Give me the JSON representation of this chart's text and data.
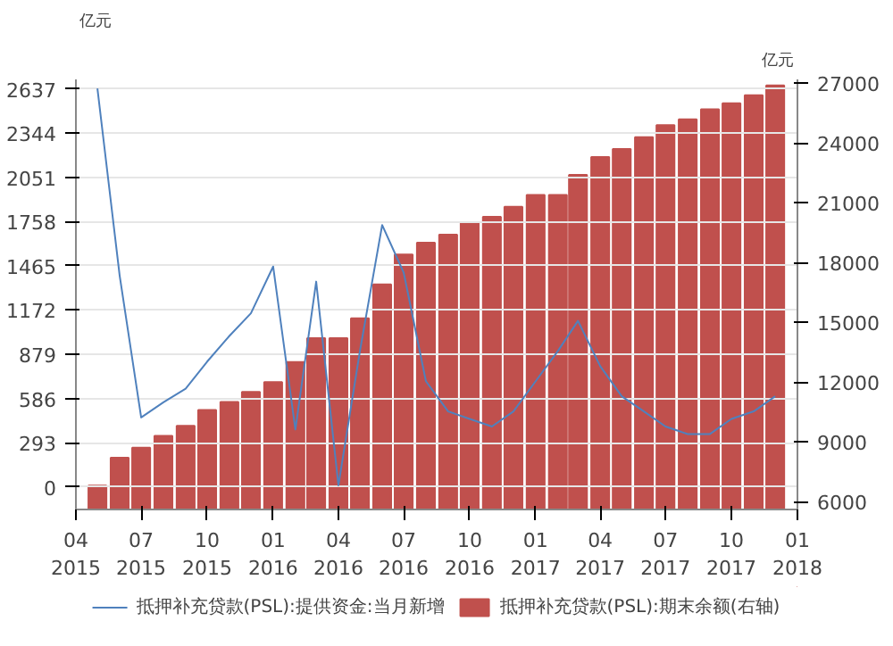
{
  "chart_data": {
    "type": "bar",
    "ylabel": "亿元",
    "y2label": "亿元",
    "x": [
      "2015-05",
      "2015-06",
      "2015-07",
      "2015-08",
      "2015-09",
      "2015-10",
      "2015-11",
      "2015-12",
      "2016-01",
      "2016-02",
      "2016-03",
      "2016-04",
      "2016-05",
      "2016-06",
      "2016-07",
      "2016-08",
      "2016-09",
      "2016-10",
      "2016-11",
      "2016-12",
      "2017-01",
      "2017-02",
      "2017-03",
      "2017-04",
      "2017-05",
      "2017-06",
      "2017-07",
      "2017-08",
      "2017-09",
      "2017-10",
      "2017-11",
      "2017-12"
    ],
    "series": [
      {
        "name": "抵押补充贷款(PSL):提供资金:当月新增",
        "type": "line",
        "color": "#4f81bd",
        "values": [
          2640,
          1400,
          460,
          560,
          650,
          830,
          1000,
          1150,
          1460,
          380,
          1360,
          10,
          900,
          1735,
          1420,
          700,
          500,
          450,
          400,
          500,
          700,
          900,
          1100,
          800,
          600,
          500,
          400,
          350,
          350,
          450,
          500,
          600
        ]
      },
      {
        "name": "抵押补充贷款(PSL):期末余额(右轴)",
        "axis": "y2",
        "color": "#c0504d",
        "values": [
          6800,
          8200,
          8700,
          9300,
          9800,
          10600,
          11000,
          11500,
          12000,
          13000,
          14200,
          14200,
          15200,
          16900,
          18400,
          19000,
          19400,
          20000,
          20300,
          20800,
          21400,
          21400,
          22400,
          23300,
          23700,
          24300,
          24900,
          25200,
          25700,
          26000,
          26400,
          26900
        ]
      }
    ],
    "xlim": [
      "2015-04",
      "2018-01"
    ],
    "xticks": [
      {
        "value": "2015-04",
        "label": "04\n2015"
      },
      {
        "value": "2015-07",
        "label": "07\n2015"
      },
      {
        "value": "2015-10",
        "label": "10\n2015"
      },
      {
        "value": "2016-01",
        "label": "01\n2016"
      },
      {
        "value": "2016-04",
        "label": "04\n2016"
      },
      {
        "value": "2016-07",
        "label": "07\n2016"
      },
      {
        "value": "2016-10",
        "label": "10\n2016"
      },
      {
        "value": "2017-01",
        "label": "01\n2017"
      },
      {
        "value": "2017-04",
        "label": "04\n2017"
      },
      {
        "value": "2017-07",
        "label": "07\n2017"
      },
      {
        "value": "2017-10",
        "label": "10\n2017"
      },
      {
        "value": "2018-01",
        "label": "01\n2018"
      }
    ],
    "ylim": [
      -150,
      2700
    ],
    "yticks": [
      0,
      293,
      586,
      879,
      1172,
      1465,
      1758,
      2051,
      2344,
      2637
    ],
    "y2lim": [
      5600,
      27200
    ],
    "y2ticks": [
      6000,
      9000,
      12000,
      15000,
      18000,
      21000,
      24000,
      27000
    ],
    "grid": "y",
    "legend": "bottom"
  }
}
